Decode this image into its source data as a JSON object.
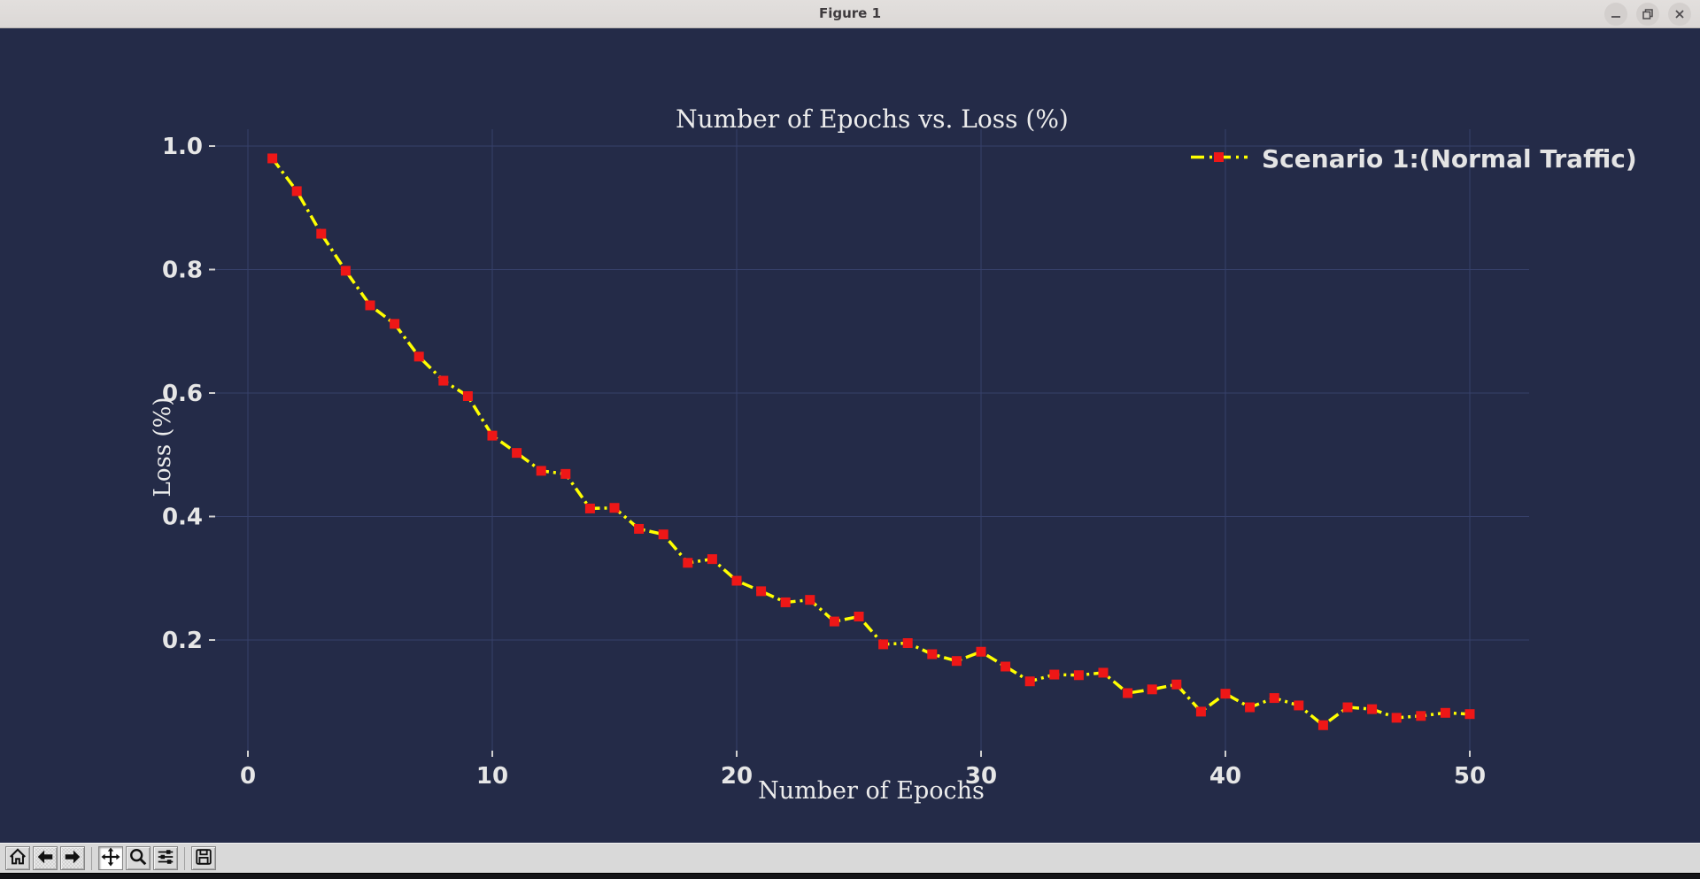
{
  "window": {
    "title": "Figure 1",
    "controls": [
      {
        "name": "minimize"
      },
      {
        "name": "restore"
      },
      {
        "name": "close"
      }
    ]
  },
  "toolbar": {
    "buttons": [
      {
        "name": "home",
        "icon": "home-icon",
        "state": "normal"
      },
      {
        "name": "back",
        "icon": "back-arrow-icon",
        "state": "disabled"
      },
      {
        "name": "forward",
        "icon": "forward-arrow-icon",
        "state": "disabled"
      },
      {
        "name": "pan",
        "icon": "pan-move-icon",
        "state": "active"
      },
      {
        "name": "zoom",
        "icon": "zoom-magnifier-icon",
        "state": "normal"
      },
      {
        "name": "subplots",
        "icon": "sliders-icon",
        "state": "normal"
      },
      {
        "name": "save",
        "icon": "floppy-save-icon",
        "state": "normal"
      }
    ]
  },
  "chart_data": {
    "type": "line",
    "title": "Number of Epochs vs. Loss (%)",
    "xlabel": "Number of Epochs",
    "ylabel": "Loss (%)",
    "x": [
      1,
      2,
      3,
      4,
      5,
      6,
      7,
      8,
      9,
      10,
      11,
      12,
      13,
      14,
      15,
      16,
      17,
      18,
      19,
      20,
      21,
      22,
      23,
      24,
      25,
      26,
      27,
      28,
      29,
      30,
      31,
      32,
      33,
      34,
      35,
      36,
      37,
      38,
      39,
      40,
      41,
      42,
      43,
      44,
      45,
      46,
      47,
      48,
      49,
      50
    ],
    "series": [
      {
        "name": "Scenario 1:(Normal Traffic)",
        "values": [
          0.98,
          0.927,
          0.858,
          0.798,
          0.742,
          0.712,
          0.659,
          0.62,
          0.595,
          0.531,
          0.503,
          0.474,
          0.469,
          0.413,
          0.414,
          0.38,
          0.371,
          0.325,
          0.331,
          0.296,
          0.279,
          0.261,
          0.265,
          0.23,
          0.238,
          0.193,
          0.195,
          0.177,
          0.166,
          0.181,
          0.157,
          0.133,
          0.144,
          0.143,
          0.147,
          0.114,
          0.12,
          0.128,
          0.084,
          0.113,
          0.091,
          0.106,
          0.094,
          0.062,
          0.091,
          0.088,
          0.074,
          0.077,
          0.082,
          0.08
        ]
      }
    ],
    "xticks": [
      0,
      10,
      20,
      30,
      40,
      50
    ],
    "yticks": [
      0.2,
      0.4,
      0.6,
      0.8,
      1.0
    ],
    "xlim": [
      -1.5,
      52.5
    ],
    "ylim": [
      0.02,
      1.03
    ],
    "grid": true,
    "legend_position": "upper right",
    "line_color": "#ffff00",
    "line_style": "dash-dot",
    "marker": "square",
    "marker_color": "#ee1717",
    "background_color": "#242b48",
    "grid_color": "#36406a",
    "tick_color": "#e6e6e6",
    "text_color": "#ececec"
  }
}
